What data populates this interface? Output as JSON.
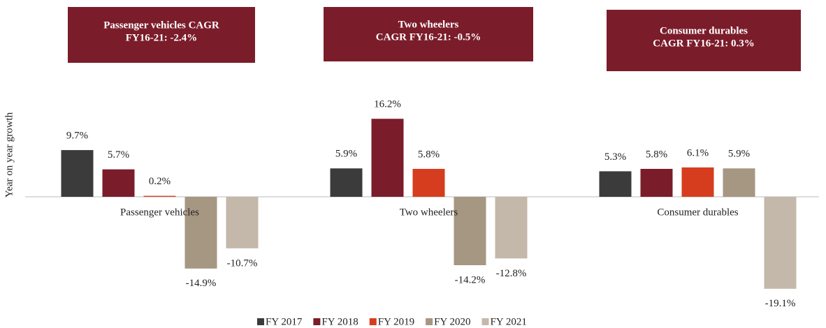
{
  "chart_data": {
    "type": "bar",
    "y_label": "Year on year growth",
    "annotations": [
      {
        "lines": [
          "Passenger vehicles CAGR",
          "FY16-21: -2.4%"
        ]
      },
      {
        "lines": [
          "Two wheelers",
          "CAGR FY16-21: -0.5%"
        ]
      },
      {
        "lines": [
          "Consumer durables",
          "CAGR FY16-21: 0.3%"
        ]
      }
    ],
    "categories": [
      "Passenger vehicles",
      "Two wheelers",
      "Consumer durables"
    ],
    "series": [
      {
        "name": "FY 2017",
        "color": "#3b3b3b",
        "values": [
          9.7,
          5.9,
          5.3
        ],
        "value_labels": [
          "9.7%",
          "5.9%",
          "5.3%"
        ]
      },
      {
        "name": "FY 2018",
        "color": "#7b1c2a",
        "values": [
          5.7,
          16.2,
          5.8
        ],
        "value_labels": [
          "5.7%",
          "16.2%",
          "5.8%"
        ]
      },
      {
        "name": "FY 2019",
        "color": "#d63d1e",
        "values": [
          0.2,
          5.8,
          6.1
        ],
        "value_labels": [
          "0.2%",
          "5.8%",
          "6.1%"
        ]
      },
      {
        "name": "FY 2020",
        "color": "#a69782",
        "values": [
          -14.9,
          -14.2,
          5.9
        ],
        "value_labels": [
          "-14.9%",
          "-14.2%",
          "5.9%"
        ]
      },
      {
        "name": "FY 2021",
        "color": "#c4b8aa",
        "values": [
          -10.7,
          -12.8,
          -19.1
        ],
        "value_labels": [
          "-10.7%",
          "-12.8%",
          "-19.1%"
        ]
      }
    ],
    "ylim": [
      -20,
      20
    ],
    "legend": "bottom"
  }
}
